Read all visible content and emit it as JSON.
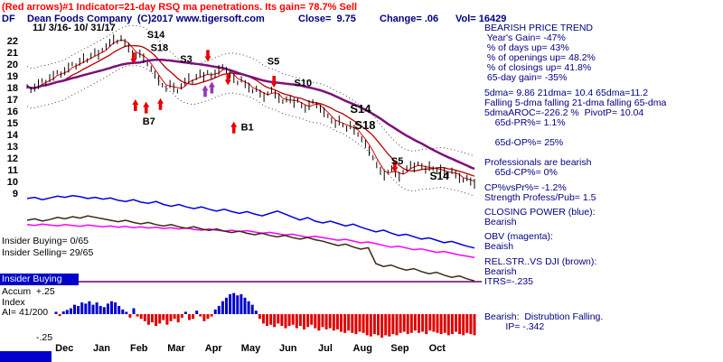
{
  "header": {
    "signal_line": "(Red arrows)#1 Indicator=21-day RSQ ma penetrations. Its gain= 78.7% Sell",
    "ticker": "DF",
    "company": "Dean Foods Company",
    "copyright": "(C)2017 www.tigersoft.com",
    "close": "Close=  9.75",
    "change": "Change= .06",
    "volume": "Vol= 16429",
    "date_range": "11/ 3/16- 10/ 31/17"
  },
  "left_panel": {
    "insider_buying": "Insider Buying= 0/65",
    "insider_selling": "Insider Selling= 29/65",
    "insider_badge": "Insider Buying",
    "accum_line": "Accum  +.25",
    "index_line": "Index",
    "ai_line": "AI= 41/200",
    "neg_label": "-.25"
  },
  "right_panel": {
    "text_color": "#000080",
    "lines": [
      {
        "text": "BEARISH PRICE TREND",
        "mt": 0
      },
      {
        "text": " Year's Gain= -47%",
        "mt": 0
      },
      {
        "text": " % of days up= 43%",
        "mt": 0
      },
      {
        "text": " % of openings up= 48.2%",
        "mt": 0
      },
      {
        "text": " % of closings up= 41.8%",
        "mt": 0
      },
      {
        "text": " 65-day gain= -35%",
        "mt": 0
      },
      {
        "text": "5dma= 9.86 21dma= 10.4 65dma=11.2",
        "mt": 6
      },
      {
        "text": "Falling 5-dma falling 21-dma falling 65-dma",
        "mt": 0
      },
      {
        "text": "5dmaAROC=-226.2 %  PivotP= 10.04",
        "mt": 0
      },
      {
        "text": "    65d-PR%= 1.1%",
        "mt": 0
      },
      {
        "text": "    65d-OP%= 25%",
        "mt": 11
      },
      {
        "text": "Professionals are bearish",
        "mt": 11
      },
      {
        "text": "    65d-CP%= 0%",
        "mt": 0
      },
      {
        "text": "CP%vsPr%= -1.2%",
        "mt": 6
      },
      {
        "text": "Strength Profess/Pub= 1.5",
        "mt": 0
      },
      {
        "text": "CLOSING POWER (blue):",
        "mt": 5
      },
      {
        "text": "Bearish",
        "mt": 0
      },
      {
        "text": "OBV (magenta):",
        "mt": 5
      },
      {
        "text": "Beaish",
        "mt": 0
      },
      {
        "text": "REL.STR..VS DJI (brown):",
        "mt": 6
      },
      {
        "text": "Bearish",
        "mt": 0
      },
      {
        "text": "ITRS=-.235",
        "mt": 0
      },
      {
        "text": "Bearish:  Distrubtion Falling.",
        "mt": 28
      },
      {
        "text": "        IP= -.342",
        "mt": 0
      }
    ]
  },
  "chart_data": {
    "type": "line",
    "title": "DF Dean Foods Company daily price with TigerSoft signals 11/3/16-10/31/17",
    "x_range": [
      "11/3/16",
      "10/31/17"
    ],
    "ylim": [
      9,
      22.6
    ],
    "price_yticks": [
      22,
      21,
      20,
      19,
      18,
      17,
      16,
      15,
      14,
      13,
      12,
      11,
      10,
      9
    ],
    "months": [
      "Dec",
      "Jan",
      "Feb",
      "Mar",
      "Apr",
      "May",
      "Jun",
      "Jul",
      "Aug",
      "Sep",
      "Oct"
    ],
    "close": [
      18.1,
      17.8,
      18.0,
      18.3,
      18.6,
      18.4,
      18.8,
      19.0,
      19.3,
      19.1,
      19.4,
      19.7,
      20.0,
      19.8,
      20.2,
      20.5,
      20.3,
      20.7,
      21.0,
      20.8,
      21.2,
      21.5,
      21.8,
      22.1,
      21.9,
      22.2,
      21.8,
      21.4,
      21.0,
      20.7,
      20.9,
      20.5,
      20.0,
      19.6,
      19.1,
      18.6,
      18.2,
      17.9,
      18.3,
      18.0,
      17.7,
      18.1,
      18.5,
      18.8,
      18.5,
      18.9,
      19.2,
      18.9,
      19.3,
      19.0,
      19.2,
      19.5,
      19.8,
      19.5,
      19.1,
      18.8,
      18.4,
      18.7,
      18.3,
      18.0,
      17.7,
      17.9,
      17.5,
      17.2,
      17.5,
      17.8,
      17.4,
      17.1,
      16.8,
      17.0,
      17.0,
      16.7,
      16.9,
      16.5,
      16.2,
      16.5,
      16.8,
      16.5,
      16.2,
      15.9,
      15.6,
      15.2,
      14.9,
      15.2,
      14.8,
      14.5,
      14.8,
      14.4,
      14.0,
      13.6,
      13.2,
      12.6,
      12.0,
      11.4,
      10.9,
      10.5,
      10.8,
      11.1,
      10.7,
      10.4,
      10.8,
      11.1,
      11.4,
      11.2,
      11.5,
      11.3,
      11.0,
      11.3,
      11.1,
      10.9,
      11.1,
      10.8,
      10.6,
      10.9,
      10.6,
      10.3,
      10.1,
      10.3,
      10.0,
      9.8
    ],
    "ma_overlays": [
      {
        "name": "ma5",
        "window": 3,
        "color": "#e00000",
        "width": 1
      },
      {
        "name": "ma21",
        "window": 10,
        "color": "#b40000",
        "width": 1.3
      },
      {
        "name": "ma65",
        "window": 31,
        "color": "#7c107c",
        "width": 2.5
      }
    ],
    "envelope": {
      "window": 10,
      "offset": 1.7,
      "color": "#444444"
    },
    "signals": [
      {
        "label": "S14",
        "xf": 0.268,
        "price": 22.25,
        "size": 11
      },
      {
        "label": "S18",
        "xf": 0.276,
        "price": 21.1,
        "size": 11
      },
      {
        "label": "S3",
        "xf": 0.342,
        "price": 20.15,
        "size": 11
      },
      {
        "label": "S5",
        "xf": 0.537,
        "price": 19.95,
        "size": 11
      },
      {
        "label": "S10",
        "xf": 0.597,
        "price": 18.1,
        "size": 11
      },
      {
        "label": "S14",
        "xf": 0.722,
        "price": 15.85,
        "size": 13
      },
      {
        "label": "S18",
        "xf": 0.732,
        "price": 14.45,
        "size": 13
      },
      {
        "label": "B7",
        "xf": 0.258,
        "price": 14.85,
        "size": 11
      },
      {
        "label": "B1",
        "xf": 0.478,
        "price": 14.35,
        "size": 11
      },
      {
        "label": "S5",
        "xf": 0.814,
        "price": 11.45,
        "size": 11
      },
      {
        "label": "S14",
        "xf": 0.9,
        "price": 10.15,
        "size": 12
      }
    ],
    "arrows": [
      {
        "dir": "down",
        "xf": 0.238,
        "price": 20.0,
        "color": "#e80000"
      },
      {
        "dir": "down",
        "xf": 0.404,
        "price": 20.2,
        "color": "#e80000"
      },
      {
        "dir": "down",
        "xf": 0.449,
        "price": 18.2,
        "color": "#e80000"
      },
      {
        "dir": "down",
        "xf": 0.552,
        "price": 18.0,
        "color": "#e80000"
      },
      {
        "dir": "down",
        "xf": 0.822,
        "price": 10.75,
        "color": "#e80000"
      },
      {
        "dir": "up",
        "xf": 0.242,
        "price": 17.0,
        "color": "#e80000"
      },
      {
        "dir": "up",
        "xf": 0.266,
        "price": 16.8,
        "color": "#e80000"
      },
      {
        "dir": "up",
        "xf": 0.298,
        "price": 17.1,
        "color": "#e80000"
      },
      {
        "dir": "up",
        "xf": 0.398,
        "price": 18.2,
        "color": "#9933bb"
      },
      {
        "dir": "up",
        "xf": 0.413,
        "price": 18.5,
        "color": "#9933bb"
      },
      {
        "dir": "up",
        "xf": 0.462,
        "price": 15.1,
        "color": "#e80000"
      }
    ],
    "indicators": [
      {
        "name": "closing-power",
        "color": "#0000e0",
        "band": [
          212,
          278
        ],
        "values": [
          0.88,
          0.9,
          0.86,
          0.89,
          0.92,
          0.9,
          0.93,
          0.91,
          0.88,
          0.9,
          0.87,
          0.89,
          0.85,
          0.83,
          0.86,
          0.82,
          0.8,
          0.83,
          0.78,
          0.75,
          0.78,
          0.74,
          0.71,
          0.74,
          0.7,
          0.67,
          0.7,
          0.66,
          0.63,
          0.66,
          0.62,
          0.59,
          0.63,
          0.67,
          0.62,
          0.57,
          0.52,
          0.56,
          0.5,
          0.47,
          0.5,
          0.46,
          0.42,
          0.45,
          0.4,
          0.36,
          0.32,
          0.35,
          0.3,
          0.26,
          0.28,
          0.24,
          0.2,
          0.22,
          0.18,
          0.14,
          0.16,
          0.12,
          0.08,
          0.05
        ]
      },
      {
        "name": "obv",
        "color": "#ff00ff",
        "band": [
          244,
          292
        ],
        "values": [
          0.9,
          0.88,
          0.91,
          0.89,
          0.87,
          0.9,
          0.88,
          0.86,
          0.89,
          0.87,
          0.85,
          0.87,
          0.84,
          0.86,
          0.83,
          0.85,
          0.82,
          0.84,
          0.81,
          0.83,
          0.8,
          0.82,
          0.79,
          0.77,
          0.8,
          0.77,
          0.75,
          0.77,
          0.74,
          0.76,
          0.73,
          0.7,
          0.72,
          0.69,
          0.66,
          0.68,
          0.64,
          0.61,
          0.63,
          0.6,
          0.57,
          0.54,
          0.56,
          0.52,
          0.48,
          0.5,
          0.46,
          0.42,
          0.38,
          0.4,
          0.36,
          0.32,
          0.34,
          0.3,
          0.26,
          0.28,
          0.24,
          0.2,
          0.17,
          0.14
        ]
      },
      {
        "name": "rel-strength",
        "color": "#3a2a10",
        "band": [
          236,
          316
        ],
        "values": [
          0.9,
          0.92,
          0.89,
          0.91,
          0.94,
          0.92,
          0.95,
          0.93,
          0.96,
          0.94,
          0.92,
          0.9,
          0.88,
          0.9,
          0.87,
          0.85,
          0.87,
          0.84,
          0.82,
          0.84,
          0.81,
          0.79,
          0.81,
          0.78,
          0.76,
          0.78,
          0.75,
          0.73,
          0.75,
          0.72,
          0.7,
          0.72,
          0.69,
          0.67,
          0.69,
          0.66,
          0.64,
          0.66,
          0.63,
          0.61,
          0.58,
          0.55,
          0.57,
          0.53,
          0.5,
          0.52,
          0.3,
          0.26,
          0.28,
          0.24,
          0.21,
          0.23,
          0.19,
          0.16,
          0.18,
          0.14,
          0.11,
          0.13,
          0.09,
          0.06
        ]
      }
    ],
    "accum_index": {
      "pos_color": "#0000cc",
      "neg_color": "#e00000",
      "scale_top": "+.25",
      "scale_bottom": "-.25",
      "values": [
        0.1,
        -0.08,
        0.12,
        0.18,
        0.25,
        0.4,
        0.35,
        0.5,
        0.45,
        0.55,
        0.4,
        0.5,
        0.35,
        0.3,
        0.45,
        0.55,
        0.5,
        0.35,
        0.2,
        0.1,
        -0.15,
        0.25,
        -0.1,
        -0.2,
        -0.3,
        -0.45,
        -0.35,
        -0.5,
        -0.4,
        -0.25,
        -0.45,
        -0.3,
        -0.2,
        -0.35,
        -0.15,
        0.1,
        -0.25,
        -0.2,
        0.15,
        -0.1,
        -0.3,
        -0.2,
        -0.1,
        0.2,
        0.35,
        0.55,
        0.7,
        0.85,
        0.9,
        0.8,
        0.85,
        0.7,
        0.55,
        0.4,
        0.15,
        -0.2,
        -0.4,
        -0.5,
        -0.45,
        -0.55,
        -0.4,
        -0.5,
        -0.6,
        -0.5,
        -0.45,
        -0.6,
        -0.5,
        -0.65,
        -0.55,
        -0.45,
        -0.6,
        -0.7,
        -0.55,
        -0.65,
        -0.6,
        -0.7,
        -0.65,
        -0.75,
        -0.8,
        -0.7,
        -0.8,
        -0.85,
        -0.75,
        -0.8,
        -0.9,
        -0.95,
        -0.85,
        -0.9,
        -1.0,
        -0.9,
        -0.95,
        -0.85,
        -0.9,
        -0.8,
        -0.75,
        -0.85,
        -0.8,
        -0.7,
        -0.8,
        -0.75,
        -0.85,
        -0.7,
        -0.75,
        -0.8,
        -0.85,
        -0.8,
        -0.9,
        -0.85,
        -0.75,
        -0.85,
        -0.9,
        -0.8,
        -0.85,
        -0.9
      ]
    }
  }
}
